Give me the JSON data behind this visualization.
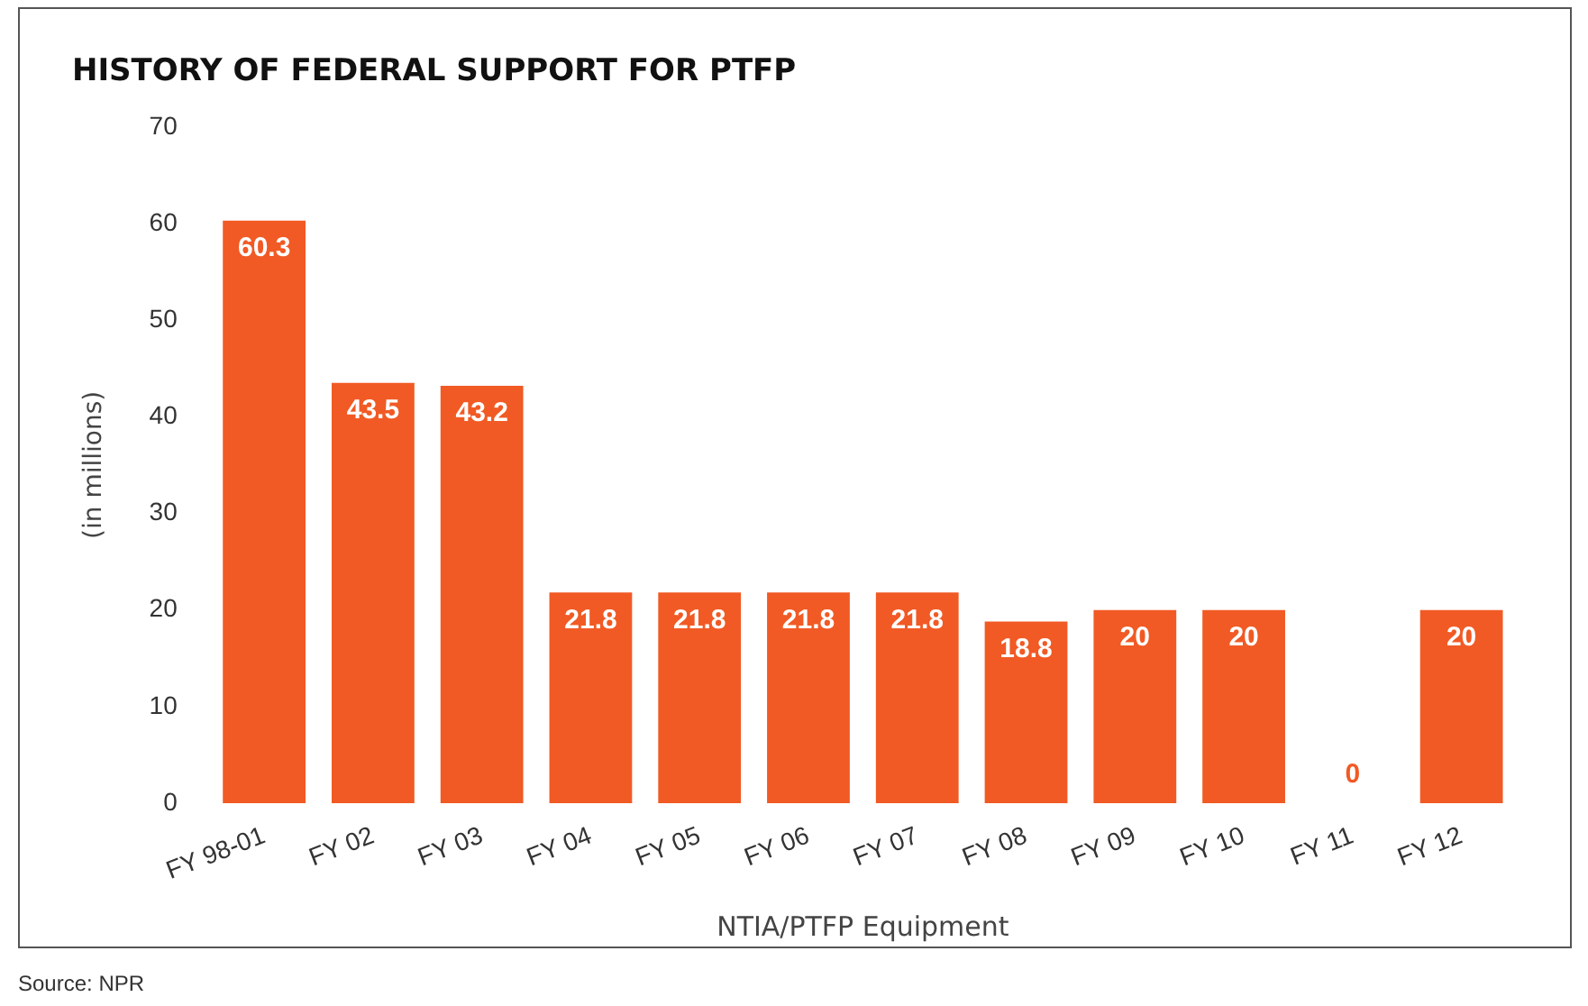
{
  "chart_data": {
    "type": "bar",
    "title": "HISTORY OF FEDERAL SUPPORT FOR PTFP",
    "xlabel": "NTIA/PTFP Equipment",
    "ylabel": "(in millions)",
    "categories": [
      "FY 98-01",
      "FY 02",
      "FY 03",
      "FY 04",
      "FY 05",
      "FY 06",
      "FY 07",
      "FY 08",
      "FY 09",
      "FY 10",
      "FY 11",
      "FY 12"
    ],
    "values": [
      60.3,
      43.5,
      43.2,
      21.8,
      21.8,
      21.8,
      21.8,
      18.8,
      20,
      20,
      0,
      20
    ],
    "color": "#f15a24",
    "ylim": [
      0,
      70
    ],
    "yticks": [
      0,
      10,
      20,
      30,
      40,
      50,
      60,
      70
    ],
    "grid": false,
    "data_labels": true,
    "annotations": [
      "Source: NPR"
    ]
  }
}
